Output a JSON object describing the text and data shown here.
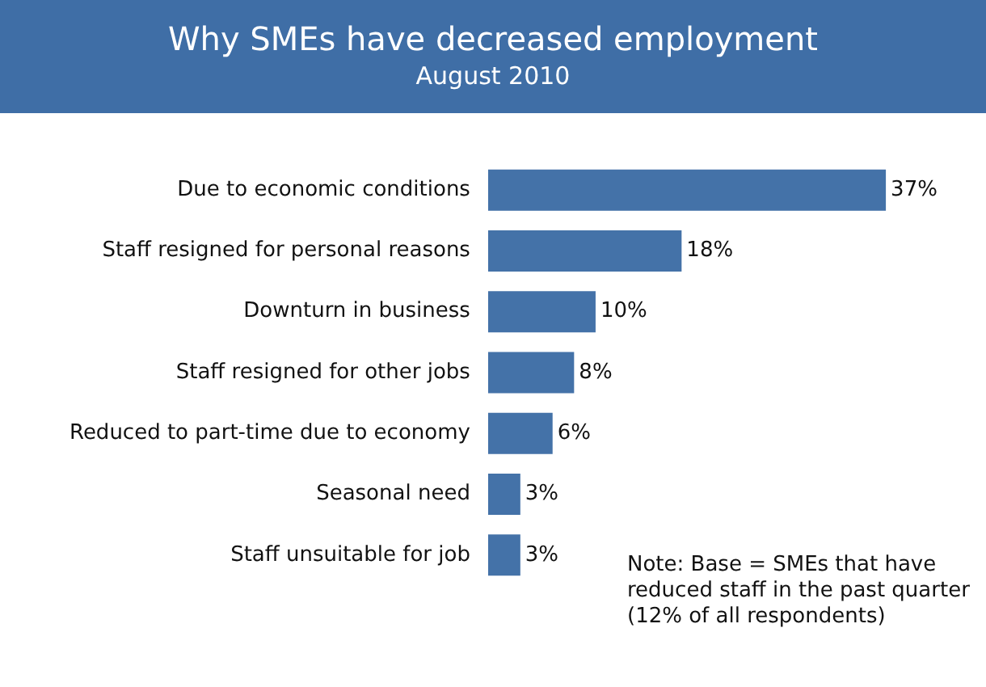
{
  "chart_data": {
    "type": "bar",
    "orientation": "horizontal",
    "title": "Why SMEs have decreased employment",
    "subtitle": "August 2010",
    "categories": [
      "Due to economic conditions",
      "Staff resigned for personal reasons",
      "Downturn in business",
      "Staff resigned for other jobs",
      "Reduced to part-time due to economy",
      "Seasonal need",
      "Staff unsuitable for job"
    ],
    "values": [
      37,
      18,
      10,
      8,
      6,
      3,
      3
    ],
    "value_labels": [
      "37%",
      "18%",
      "10%",
      "8%",
      "6%",
      "3%",
      "3%"
    ],
    "color": "#4472a8",
    "legend": false,
    "annotations": [
      "Note: Base = SMEs that have reduced staff in the past quarter (12% of all respondents)"
    ]
  }
}
